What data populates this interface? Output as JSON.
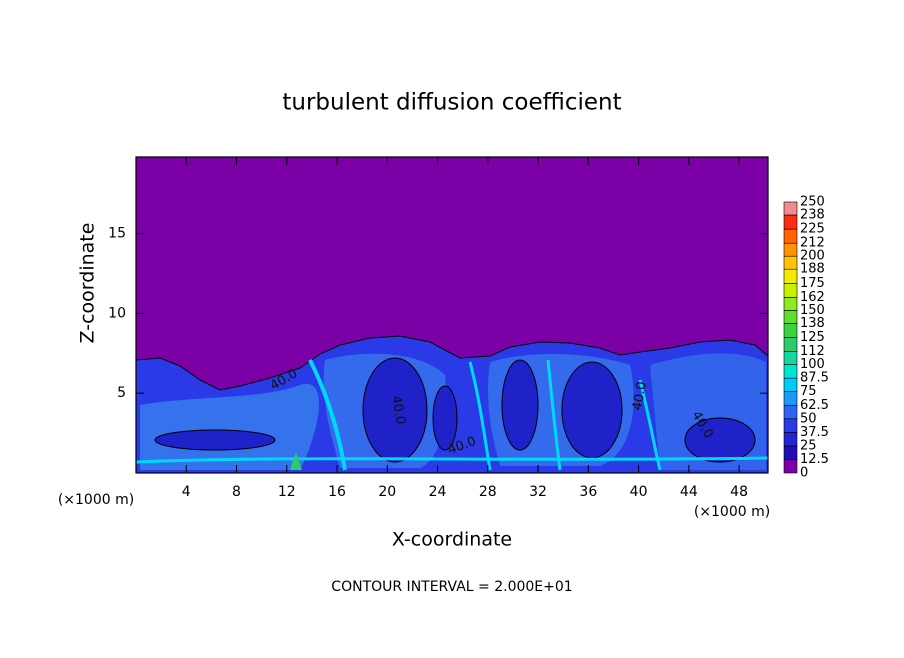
{
  "chart_data": {
    "type": "contour",
    "title": "turbulent diffusion coefficient",
    "x_label": "X-coordinate",
    "y_label": "Z-coordinate",
    "x_unit_left": "(×1000 m)",
    "x_unit_right": "(×1000 m)",
    "annotation": "CONTOUR INTERVAL = 2.000E+01",
    "contour_labels": [
      "40.0",
      "40.0",
      "40.0",
      "40.0",
      "40.0"
    ],
    "xlim": [
      0,
      50.3
    ],
    "xticks": [
      4,
      8,
      12,
      16,
      20,
      24,
      28,
      32,
      36,
      40,
      44,
      48
    ],
    "ylim": [
      0,
      19.8
    ],
    "yticks": [
      5,
      10,
      15
    ],
    "levels": [
      0,
      12.5,
      25,
      37.5,
      50,
      62.5,
      75,
      87.5,
      100,
      112,
      125,
      138,
      150,
      162,
      175,
      188,
      200,
      212,
      225,
      238,
      250
    ],
    "colors": [
      "#7b00a5",
      "#1e0fb4",
      "#2424d2",
      "#2a3ae6",
      "#2c64f4",
      "#1c9af8",
      "#00ccf8",
      "#00e4d4",
      "#14d8a0",
      "#2ccc6c",
      "#3cd23c",
      "#5ee02c",
      "#8cec1c",
      "#c8f000",
      "#f4ec00",
      "#ffc400",
      "#ff9400",
      "#ff6400",
      "#ff2c14",
      "#f08c8c"
    ]
  }
}
